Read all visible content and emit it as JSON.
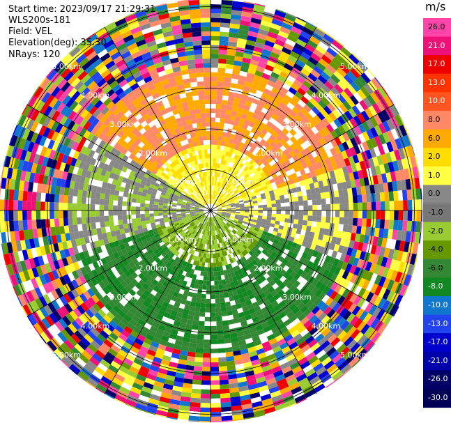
{
  "header": {
    "start_time": "Start time: 2023/09/17 21:29:31",
    "instrument": "WLS200s-181",
    "field": "Field: VEL",
    "elevation": "Elevation(deg): 35.30",
    "nrays": "NRays: 120"
  },
  "colorbar": {
    "unit": "m/s",
    "ticks": [
      "26.0",
      "21.0",
      "17.0",
      "13.0",
      "10.0",
      "8.0",
      "6.0",
      "2.0",
      "1.0",
      "0.0",
      "-1.0",
      "-2.0",
      "-4.0",
      "-6.0",
      "-8.0",
      "-10.0",
      "-13.0",
      "-17.0",
      "-21.0",
      "-26.0",
      "-30.0"
    ],
    "colors": [
      "#ff44aa",
      "#ee1177",
      "#ee0000",
      "#ff3300",
      "#ff5522",
      "#ff8866",
      "#ffaa00",
      "#ffdd00",
      "#ffff44",
      "#888888",
      "#777777",
      "#99cc33",
      "#669900",
      "#338833",
      "#118822",
      "#1177cc",
      "#2244ee",
      "#0000cc",
      "#0000aa",
      "#000066",
      "#000055"
    ]
  },
  "chart_data": {
    "type": "ppi",
    "field": "VEL",
    "units": "m/s",
    "range_rings_km": [
      1.0,
      2.0,
      3.0,
      4.0,
      5.0
    ],
    "ring_labels": [
      "1.00km",
      "2.00km",
      "3.00km",
      "4.00km",
      "5.00km"
    ],
    "n_rays": 120,
    "elevation_deg": 35.3,
    "vmin": -30.0,
    "vmax": 26.0,
    "max_range_km": 5.5
  }
}
